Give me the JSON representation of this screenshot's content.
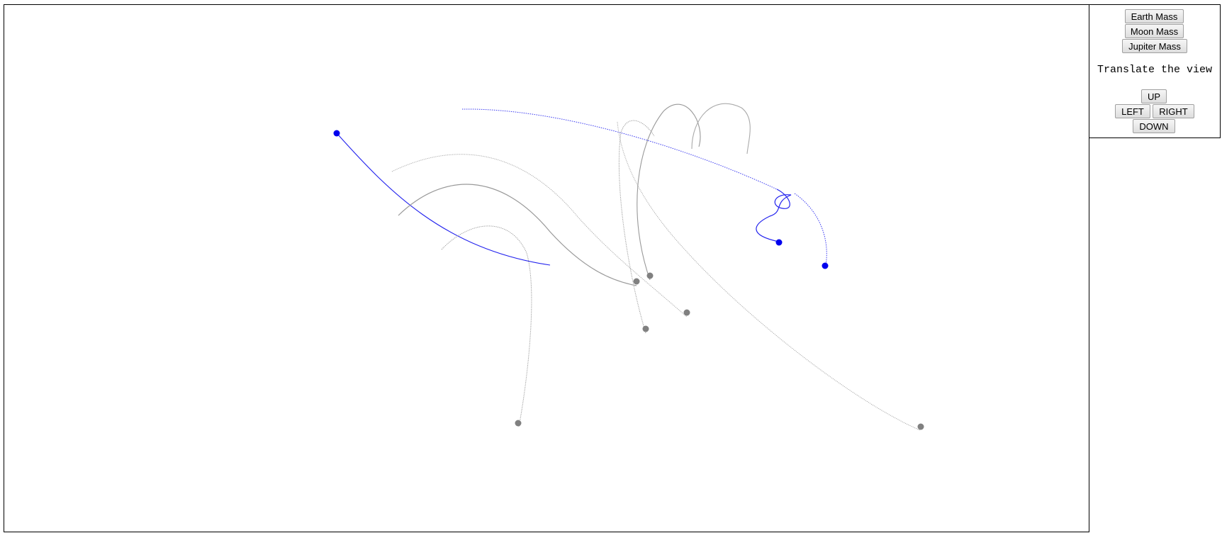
{
  "controls": {
    "mass_buttons": {
      "earth": "Earth Mass",
      "moon": "Moon Mass",
      "jupiter": "Jupiter Mass"
    },
    "translate_label": "Translate the view",
    "nav_buttons": {
      "up": "UP",
      "left": "LEFT",
      "right": "RIGHT",
      "down": "DOWN"
    }
  },
  "colors": {
    "selected_body": "#0000ee",
    "other_body": "#808080",
    "trail_blue": "#3b3bf0",
    "trail_gray": "#999999"
  }
}
